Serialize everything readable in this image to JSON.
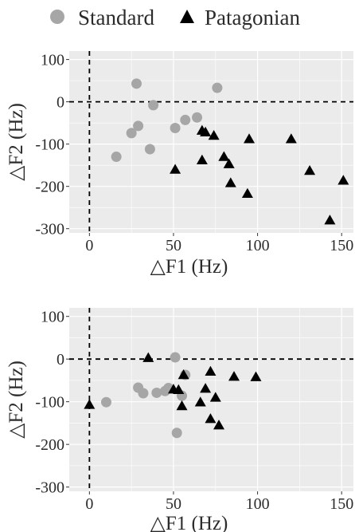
{
  "legend": {
    "position": "top",
    "items": [
      {
        "name": "Standard",
        "marker": "circle",
        "color": "#a6a6a6"
      },
      {
        "name": "Patagonian",
        "marker": "triangle",
        "color": "#000000"
      }
    ]
  },
  "colors": {
    "panel_background": "#ebebeb",
    "gridline": "#ffffff",
    "reference_line": "#000000",
    "standard": "#a6a6a6",
    "patagonian": "#000000"
  },
  "chart_data": [
    {
      "type": "scatter",
      "xlabel": "△F1 (Hz)",
      "ylabel": "△F2 (Hz)",
      "xlim": [
        -12,
        157
      ],
      "ylim": [
        -310,
        120
      ],
      "xticks": [
        0,
        50,
        100,
        150
      ],
      "xtick_labels": [
        "0",
        "50",
        "100",
        "150"
      ],
      "yticks": [
        100,
        0,
        -100,
        -200,
        -300
      ],
      "ytick_labels": [
        "100",
        "0",
        "-100",
        "-200",
        "-300"
      ],
      "grid": true,
      "reference_lines": {
        "x": 0,
        "y": 0,
        "style": "dashed"
      },
      "series": [
        {
          "name": "Standard",
          "marker": "circle",
          "points": [
            [
              16,
              -130
            ],
            [
              25,
              -74
            ],
            [
              28,
              43
            ],
            [
              29,
              -57
            ],
            [
              36,
              -112
            ],
            [
              38,
              -8
            ],
            [
              51,
              -62
            ],
            [
              57,
              -43
            ],
            [
              64,
              -37
            ],
            [
              76,
              33
            ]
          ]
        },
        {
          "name": "Patagonian",
          "marker": "triangle",
          "points": [
            [
              51,
              -160
            ],
            [
              67,
              -68
            ],
            [
              69,
              -72
            ],
            [
              67,
              -138
            ],
            [
              74,
              -80
            ],
            [
              80,
              -130
            ],
            [
              83,
              -147
            ],
            [
              84,
              -192
            ],
            [
              94,
              -217
            ],
            [
              95,
              -88
            ],
            [
              120,
              -88
            ],
            [
              131,
              -163
            ],
            [
              143,
              -280
            ],
            [
              151,
              -186
            ]
          ]
        }
      ]
    },
    {
      "type": "scatter",
      "xlabel": "△F1 (Hz)",
      "ylabel": "△F2 (Hz)",
      "xlim": [
        -12,
        157
      ],
      "ylim": [
        -310,
        120
      ],
      "xticks": [
        0,
        50,
        100,
        150
      ],
      "xtick_labels": [
        "0",
        "50",
        "100",
        "150"
      ],
      "yticks": [
        100,
        0,
        -100,
        -200,
        -300
      ],
      "ytick_labels": [
        "100",
        "0",
        "-100",
        "-200",
        "-300"
      ],
      "grid": true,
      "reference_lines": {
        "x": 0,
        "y": 0,
        "style": "dashed"
      },
      "series": [
        {
          "name": "Standard",
          "marker": "circle",
          "points": [
            [
              10,
              -101
            ],
            [
              29,
              -67
            ],
            [
              32,
              -80
            ],
            [
              40,
              -79
            ],
            [
              45,
              -75
            ],
            [
              47,
              -68
            ],
            [
              51,
              4
            ],
            [
              52,
              -173
            ],
            [
              55,
              -86
            ],
            [
              57,
              -37
            ]
          ]
        },
        {
          "name": "Patagonian",
          "marker": "triangle",
          "points": [
            [
              0,
              -107
            ],
            [
              35,
              3
            ],
            [
              50,
              -71
            ],
            [
              53,
              -72
            ],
            [
              55,
              -110
            ],
            [
              56,
              -37
            ],
            [
              66,
              -101
            ],
            [
              69,
              -69
            ],
            [
              72,
              -29
            ],
            [
              72,
              -140
            ],
            [
              75,
              -90
            ],
            [
              77,
              -155
            ],
            [
              86,
              -41
            ],
            [
              99,
              -42
            ]
          ]
        }
      ]
    }
  ]
}
